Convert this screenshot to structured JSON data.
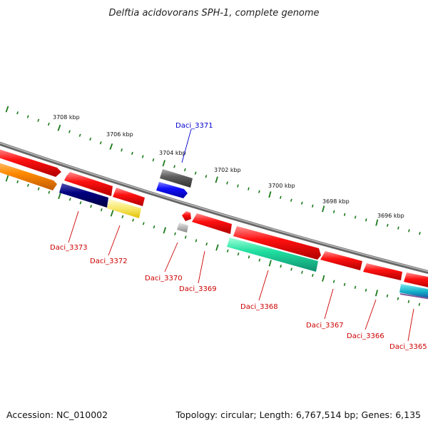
{
  "title": "Delftia acidovorans SPH-1, complete genome",
  "footer": {
    "accession": "Accession: NC_010002",
    "topology": "Topology: circular; Length: 6,767,514 bp; Genes: 6,135"
  },
  "ticks": {
    "color": "#1a7a1a",
    "labels": [
      "3708 kbp",
      "3706 kbp",
      "3704 kbp",
      "3702 kbp",
      "3700 kbp",
      "3698 kbp",
      "3696 kbp"
    ]
  },
  "genes": [
    {
      "id": "Daci_3373",
      "color": "#cc0000",
      "fill": "#00007a"
    },
    {
      "id": "Daci_3372",
      "color": "#cc0000",
      "fill": "#f2e24d"
    },
    {
      "id": "Daci_3371",
      "color": "#0000cc",
      "fill": "#1010ee"
    },
    {
      "id": "Daci_3370",
      "color": "#cc0000",
      "fill": "#a8a8a8"
    },
    {
      "id": "Daci_3369",
      "color": "#cc0000",
      "fill": "#ee0000"
    },
    {
      "id": "Daci_3368",
      "color": "#cc0000",
      "fill": "#21d99a"
    },
    {
      "id": "Daci_3367",
      "color": "#cc0000",
      "fill": "#ee0000"
    },
    {
      "id": "Daci_3366",
      "color": "#cc0000",
      "fill": "#ee0000"
    },
    {
      "id": "Daci_3365",
      "color": "#cc0000",
      "fill": "#22aabb"
    }
  ]
}
